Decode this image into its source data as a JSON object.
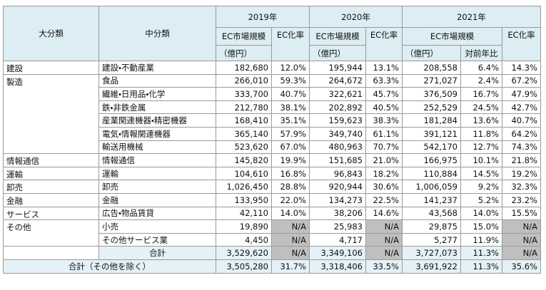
{
  "table": {
    "header": {
      "major": "大分類",
      "minor": "中分類"
    },
    "years": [
      {
        "year": "2019年",
        "market": "EC市場規模",
        "unit": "（億円）",
        "rate": "EC化率"
      },
      {
        "year": "2020年",
        "market": "EC市場規模",
        "unit": "（億円）",
        "rate": "EC化率"
      },
      {
        "year": "2021年",
        "market": "EC市場規模",
        "unit": "（億円）",
        "yoy": "対前年比",
        "rate": "EC化率"
      }
    ],
    "groups": [
      {
        "major": "建設",
        "rows": [
          {
            "minor": "建設・不動産業",
            "cells": [
              "182,680",
              "12.0%",
              "195,944",
              "13.1%",
              "208,558",
              "6.4%",
              "14.3%"
            ]
          }
        ]
      },
      {
        "major": "製造",
        "rows": [
          {
            "minor": "食品",
            "cells": [
              "266,010",
              "59.3%",
              "264,672",
              "63.3%",
              "271,027",
              "2.4%",
              "67.2%"
            ]
          },
          {
            "minor": "繊維・日用品・化学",
            "cells": [
              "333,700",
              "40.7%",
              "322,621",
              "45.7%",
              "376,509",
              "16.7%",
              "47.9%"
            ]
          },
          {
            "minor": "鉄・非鉄金属",
            "cells": [
              "212,780",
              "38.1%",
              "202,892",
              "40.5%",
              "252,529",
              "24.5%",
              "42.7%"
            ]
          },
          {
            "minor": "産業関連機器・精密機器",
            "cells": [
              "168,410",
              "35.1%",
              "159,623",
              "38.3%",
              "181,284",
              "13.6%",
              "40.7%"
            ]
          },
          {
            "minor": "電気・情報関連機器",
            "cells": [
              "365,140",
              "57.9%",
              "349,740",
              "61.1%",
              "391,121",
              "11.8%",
              "64.2%"
            ]
          },
          {
            "minor": "輸送用機械",
            "cells": [
              "523,620",
              "67.0%",
              "480,963",
              "70.7%",
              "542,170",
              "12.7%",
              "74.3%"
            ]
          }
        ]
      },
      {
        "major": "情報通信",
        "rows": [
          {
            "minor": "情報通信",
            "cells": [
              "145,820",
              "19.9%",
              "151,685",
              "21.0%",
              "166,975",
              "10.1%",
              "21.8%"
            ]
          }
        ]
      },
      {
        "major": "運輸",
        "rows": [
          {
            "minor": "運輸",
            "cells": [
              "104,610",
              "16.8%",
              "96,843",
              "18.2%",
              "110,884",
              "14.5%",
              "19.2%"
            ]
          }
        ]
      },
      {
        "major": "卸売",
        "rows": [
          {
            "minor": "卸売",
            "cells": [
              "1,026,450",
              "28.8%",
              "920,944",
              "30.6%",
              "1,006,059",
              "9.2%",
              "32.3%"
            ]
          }
        ]
      },
      {
        "major": "金融",
        "rows": [
          {
            "minor": "金融",
            "cells": [
              "133,950",
              "22.0%",
              "134,273",
              "22.5%",
              "141,237",
              "5.2%",
              "23.2%"
            ]
          }
        ]
      },
      {
        "major": "サービス",
        "rows": [
          {
            "minor": "広告・物品賃貸",
            "cells": [
              "42,110",
              "14.0%",
              "38,206",
              "14.6%",
              "43,568",
              "14.0%",
              "15.5%"
            ]
          }
        ]
      },
      {
        "major": "その他",
        "rows": [
          {
            "minor": "小売",
            "cells": [
              "19,890",
              "N/A",
              "25,983",
              "N/A",
              "29,875",
              "15.0%",
              "N/A"
            ]
          },
          {
            "minor": "その他サービス業",
            "cells": [
              "4,450",
              "N/A",
              "4,717",
              "N/A",
              "5,277",
              "11.9%",
              "N/A"
            ]
          }
        ]
      }
    ],
    "totals": [
      {
        "label": "合計",
        "cells": [
          "3,529,620",
          "N/A",
          "3,349,106",
          "N/A",
          "3,727,073",
          "11.3%",
          "N/A"
        ]
      },
      {
        "label": "合計（その他を除く）",
        "cells": [
          "3,505,280",
          "31.7%",
          "3,318,406",
          "33.5%",
          "3,691,922",
          "11.3%",
          "35.6%"
        ]
      }
    ]
  }
}
